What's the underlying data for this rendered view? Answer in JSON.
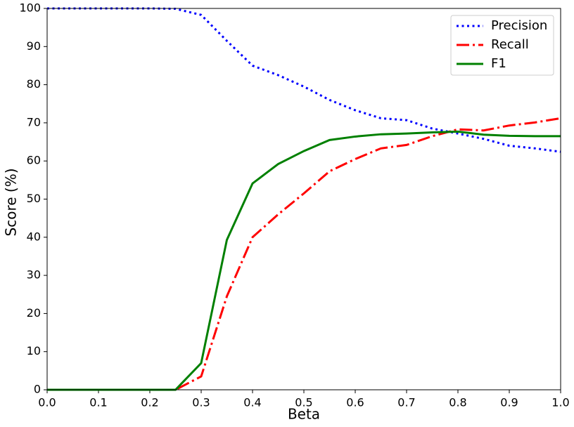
{
  "chart_data": {
    "type": "line",
    "xlabel": "Beta",
    "ylabel": "Score (%)",
    "x": [
      0,
      0.05,
      0.1,
      0.15,
      0.2,
      0.25,
      0.3,
      0.35,
      0.4,
      0.45,
      0.5,
      0.55,
      0.6,
      0.65,
      0.7,
      0.75,
      0.8,
      0.85,
      0.9,
      0.95,
      1
    ],
    "series": [
      {
        "name": "Precision",
        "color": "#0000ff",
        "linestyle": "dotted",
        "values": [
          100,
          100,
          100,
          100,
          100,
          99.9,
          98.3,
          91.5,
          85,
          82.5,
          79.5,
          76,
          73.3,
          71.2,
          70.7,
          68.5,
          67.2,
          65.8,
          64,
          63.3,
          62.4
        ]
      },
      {
        "name": "Recall",
        "color": "#ff0000",
        "linestyle": "dashdot",
        "values": [
          0,
          0,
          0,
          0,
          0,
          0,
          3.5,
          24.5,
          40,
          46,
          51.5,
          57.3,
          60.5,
          63.3,
          64.2,
          66.5,
          68.3,
          68,
          69.3,
          70.1,
          71.2
        ]
      },
      {
        "name": "F1",
        "color": "#008000",
        "linestyle": "solid",
        "values": [
          0,
          0,
          0,
          0,
          0,
          0,
          7,
          39.3,
          54.1,
          59.2,
          62.6,
          65.5,
          66.4,
          67,
          67.2,
          67.5,
          67.7,
          66.9,
          66.6,
          66.5,
          66.5
        ]
      }
    ],
    "xlim": [
      0,
      1
    ],
    "xticks": [
      {
        "value": 0,
        "label": "0.0"
      },
      0.1,
      0.2,
      0.3,
      0.4,
      0.5,
      0.6,
      0.7,
      0.8,
      0.9,
      {
        "value": 1,
        "label": "1.0"
      }
    ],
    "ylim": [
      0,
      100
    ],
    "yticks": [
      0,
      10,
      20,
      30,
      40,
      50,
      60,
      70,
      80,
      90,
      100
    ],
    "grid": false,
    "legend": "upper right"
  }
}
